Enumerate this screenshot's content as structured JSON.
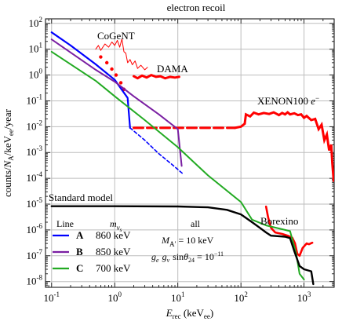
{
  "chart_data": {
    "type": "line",
    "title": "electron recoil",
    "xlabel": {
      "main": "E",
      "sub1": "rec",
      "mid": " (keV",
      "sub2": "ee",
      "end": ")"
    },
    "ylabel": {
      "a": "counts/",
      "N": "N",
      "sub": "A",
      "b": "/keV",
      "sub2": "ee",
      "c": "/year"
    },
    "x_scale": "log",
    "y_scale": "log",
    "xlim": [
      0.08,
      3000
    ],
    "ylim": [
      6e-09,
      150
    ],
    "grid": true,
    "x_ticks": [
      {
        "v": 0.1,
        "base": "10",
        "exp": "-1"
      },
      {
        "v": 1,
        "base": "10",
        "exp": "0"
      },
      {
        "v": 10,
        "base": "10",
        "exp": "1"
      },
      {
        "v": 100,
        "base": "10",
        "exp": "2"
      },
      {
        "v": 1000,
        "base": "10",
        "exp": "3"
      }
    ],
    "y_ticks": [
      {
        "v": 100,
        "base": "10",
        "exp": "2"
      },
      {
        "v": 10,
        "base": "10",
        "exp": "1"
      },
      {
        "v": 1,
        "base": "10",
        "exp": "0"
      },
      {
        "v": 0.1,
        "base": "10",
        "exp": "-1"
      },
      {
        "v": 0.01,
        "base": "10",
        "exp": "-2"
      },
      {
        "v": 0.001,
        "base": "10",
        "exp": "-3"
      },
      {
        "v": 0.0001,
        "base": "10",
        "exp": "-4"
      },
      {
        "v": 1e-05,
        "base": "10",
        "exp": "-5"
      },
      {
        "v": 1e-06,
        "base": "10",
        "exp": "-6"
      },
      {
        "v": 1e-07,
        "base": "10",
        "exp": "-7"
      },
      {
        "v": 1e-08,
        "base": "10",
        "exp": "-8"
      }
    ],
    "series": [
      {
        "color": "#0000ff",
        "width": 2.2,
        "points": [
          [
            0.1,
            45
          ],
          [
            0.2,
            14
          ],
          [
            0.5,
            2.6
          ],
          [
            1.0,
            0.65
          ],
          [
            1.6,
            0.13
          ],
          [
            1.75,
            0.009
          ]
        ]
      },
      {
        "color": "#0000ff",
        "width": 1.6,
        "dash": "4,3",
        "points": [
          [
            1.75,
            0.009
          ],
          [
            3,
            0.003
          ],
          [
            5,
            0.0009
          ],
          [
            8,
            0.00035
          ],
          [
            12,
            0.00015
          ]
        ]
      },
      {
        "color": "#7a1fa2",
        "width": 2.0,
        "points": [
          [
            0.1,
            24
          ],
          [
            0.5,
            1.6
          ],
          [
            1.0,
            0.55
          ],
          [
            2,
            0.15
          ],
          [
            5,
            0.03
          ],
          [
            10,
            0.008
          ],
          [
            11.5,
            0.0003
          ]
        ]
      },
      {
        "color": "#22aa22",
        "width": 2.0,
        "points": [
          [
            0.1,
            8
          ],
          [
            0.5,
            0.6
          ],
          [
            1,
            0.15
          ],
          [
            3,
            0.018
          ],
          [
            10,
            0.0016
          ],
          [
            30,
            0.00013
          ],
          [
            100,
            1.2e-05
          ],
          [
            150,
            2.5e-06
          ],
          [
            250,
            1.5e-06
          ],
          [
            600,
            9e-07
          ],
          [
            750,
            1.2e-07
          ],
          [
            850,
            2e-08
          ],
          [
            1000,
            1.2e-08
          ]
        ]
      },
      {
        "color": "#000000",
        "width": 2.4,
        "points": [
          [
            0.1,
            8.3e-06
          ],
          [
            1,
            8.3e-06
          ],
          [
            10,
            8.1e-06
          ],
          [
            30,
            7.5e-06
          ],
          [
            60,
            6e-06
          ],
          [
            100,
            4e-06
          ],
          [
            150,
            2e-06
          ],
          [
            200,
            1.2e-06
          ],
          [
            250,
            8e-07
          ],
          [
            300,
            6e-07
          ],
          [
            500,
            5.5e-07
          ],
          [
            600,
            4.8e-07
          ],
          [
            700,
            1.5e-07
          ],
          [
            850,
            4e-08
          ],
          [
            1000,
            3e-08
          ],
          [
            1300,
            2.5e-08
          ],
          [
            1400,
            8e-09
          ]
        ]
      }
    ],
    "dama": {
      "color": "#ff0000",
      "points": [
        [
          2,
          0.9
        ],
        [
          2.3,
          0.75
        ],
        [
          2.7,
          0.95
        ],
        [
          3.2,
          0.8
        ],
        [
          3.8,
          1.0
        ],
        [
          4.5,
          0.85
        ],
        [
          5.3,
          0.9
        ],
        [
          6.3,
          0.75
        ],
        [
          7.5,
          0.85
        ],
        [
          9,
          0.8
        ],
        [
          10.5,
          0.85
        ]
      ]
    },
    "cogent": {
      "color": "#ff0000",
      "points": [
        [
          0.5,
          10
        ],
        [
          0.55,
          14
        ],
        [
          0.6,
          9
        ],
        [
          0.7,
          16
        ],
        [
          0.8,
          12
        ],
        [
          0.9,
          19
        ],
        [
          1.0,
          14
        ],
        [
          1.1,
          22
        ],
        [
          1.2,
          12
        ],
        [
          1.3,
          25
        ],
        [
          1.4,
          8
        ],
        [
          1.5,
          7
        ],
        [
          1.6,
          3
        ],
        [
          1.75,
          4
        ],
        [
          1.9,
          2.5
        ],
        [
          2.1,
          3.5
        ],
        [
          2.3,
          1.8
        ],
        [
          2.6,
          2.4
        ],
        [
          3,
          1.6
        ],
        [
          3.3,
          2
        ]
      ]
    },
    "dots": [
      [
        0.6,
        5
      ],
      [
        0.75,
        3
      ],
      [
        0.9,
        1.7
      ],
      [
        1.05,
        1.0
      ],
      [
        1.25,
        0.5
      ],
      [
        1.4,
        0.28
      ]
    ],
    "xenon_dash": [
      [
        2,
        0.009
      ],
      [
        80,
        0.009
      ]
    ],
    "xenon": [
      [
        80,
        0.009
      ],
      [
        100,
        0.01
      ],
      [
        115,
        0.013
      ],
      [
        120,
        0.03
      ],
      [
        140,
        0.025
      ],
      [
        160,
        0.035
      ],
      [
        190,
        0.03
      ],
      [
        230,
        0.034
      ],
      [
        280,
        0.031
      ],
      [
        330,
        0.036
      ],
      [
        400,
        0.028
      ],
      [
        450,
        0.034
      ],
      [
        500,
        0.03
      ],
      [
        550,
        0.036
      ],
      [
        600,
        0.03
      ],
      [
        700,
        0.033
      ],
      [
        800,
        0.028
      ],
      [
        900,
        0.03
      ],
      [
        1000,
        0.022
      ],
      [
        1100,
        0.026
      ],
      [
        1300,
        0.018
      ],
      [
        1500,
        0.02
      ],
      [
        1700,
        0.008
      ],
      [
        1900,
        0.012
      ],
      [
        2100,
        0.003
      ],
      [
        2300,
        0.005
      ],
      [
        2500,
        0.0012
      ],
      [
        2700,
        0.002
      ],
      [
        2800,
        0.0004
      ],
      [
        2950,
        8e-05
      ]
    ],
    "borexino": [
      [
        250,
        8e-06
      ],
      [
        270,
        3e-06
      ],
      [
        300,
        1.2e-06
      ],
      [
        350,
        8e-07
      ],
      [
        450,
        7e-07
      ],
      [
        550,
        6e-07
      ],
      [
        650,
        5e-07
      ],
      [
        720,
        3e-07
      ],
      [
        780,
        1.2e-07
      ],
      [
        850,
        1e-07
      ],
      [
        950,
        2e-07
      ],
      [
        1100,
        3e-07
      ],
      [
        1200,
        2.8e-07
      ],
      [
        1350,
        3.2e-07
      ]
    ],
    "labels": {
      "cogent": "CoGeNT",
      "dama": "DAMA",
      "xenon": "XENON100",
      "xenon_sup": "−",
      "xenon_e": "e",
      "standard_model": "Standard model",
      "borexino": "Borexino"
    },
    "legend": {
      "header_line": "Line",
      "header_m": "m",
      "header_m_sub": "ν",
      "header_m_subsub": "s",
      "header_all": "all",
      "rows": [
        {
          "letter": "A",
          "value": "860 keV",
          "color": "#0000ff"
        },
        {
          "letter": "B",
          "value": "850 keV",
          "color": "#7a1fa2"
        },
        {
          "letter": "C",
          "value": "700 keV",
          "color": "#22aa22"
        }
      ],
      "mass_label": "M",
      "mass_sub": "A′",
      "mass_value": " = 10 keV",
      "coupling_prefix": "g",
      "coupling_e": "e",
      "coupling_g2": "g",
      "coupling_nu": "ν",
      "coupling_sin": "sin",
      "coupling_theta": "θ",
      "coupling_24": "24",
      "coupling_eq": " = 10",
      "coupling_exp": "−11"
    }
  }
}
